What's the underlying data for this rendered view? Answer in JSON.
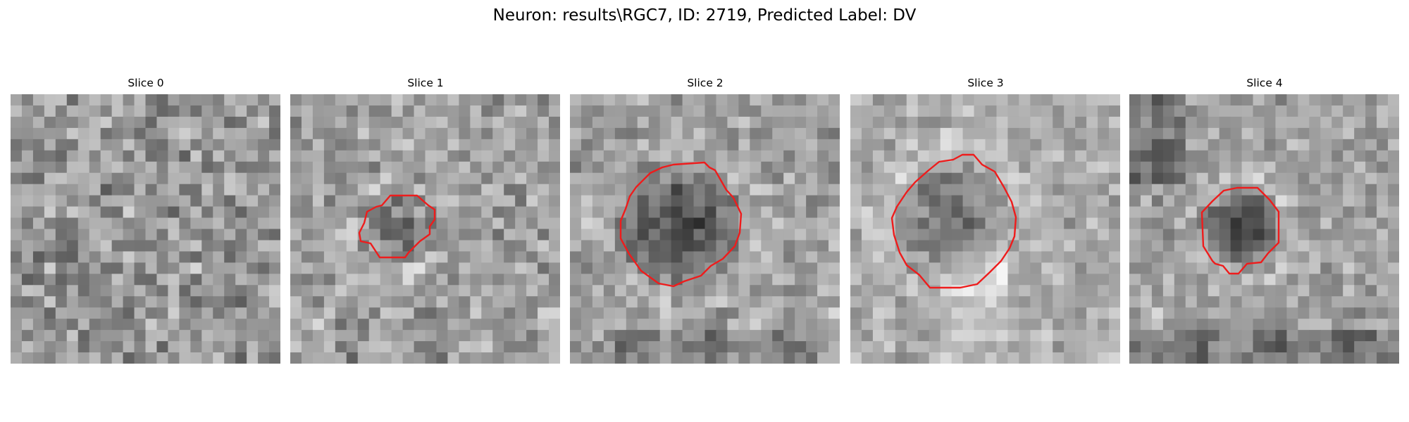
{
  "figure": {
    "title": "Neuron: results\\RGC7, ID: 2719, Predicted Label: DV"
  },
  "colors": {
    "contour": "#ee1c1c",
    "background": "#ffffff"
  },
  "panels": [
    {
      "title": "Slice 0",
      "has_contour": false
    },
    {
      "title": "Slice 1",
      "has_contour": true
    },
    {
      "title": "Slice 2",
      "has_contour": true
    },
    {
      "title": "Slice 3",
      "has_contour": true
    },
    {
      "title": "Slice 4",
      "has_contour": true
    }
  ]
}
